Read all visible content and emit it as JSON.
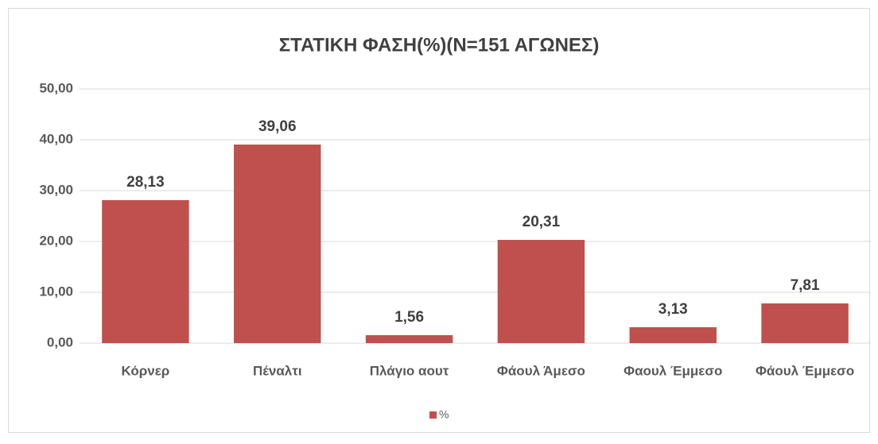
{
  "chart_data": {
    "type": "bar",
    "title": "ΣΤΑΤΙΚΗ ΦΑΣΗ(%)(Ν=151 ΑΓΩΝΕΣ)",
    "categories": [
      "Κόρνερ",
      "Πέναλτι",
      "Πλάγιο αουτ",
      "Φάουλ Άμεσο",
      "Φαουλ Έμμεσο",
      "Φάουλ Έμμεσο"
    ],
    "series": [
      {
        "name": "%",
        "color": "#c0504d",
        "values": [
          28.13,
          39.06,
          1.56,
          20.31,
          3.13,
          7.81
        ],
        "value_labels": [
          "28,13",
          "39,06",
          "1,56",
          "20,31",
          "3,13",
          "7,81"
        ]
      }
    ],
    "ylim": [
      0,
      50
    ],
    "yticks": [
      {
        "value": 0,
        "label": "0,00"
      },
      {
        "value": 10,
        "label": "10,00"
      },
      {
        "value": 20,
        "label": "20,00"
      },
      {
        "value": 30,
        "label": "30,00"
      },
      {
        "value": 40,
        "label": "40,00"
      },
      {
        "value": 50,
        "label": "50,00"
      }
    ],
    "grid": true,
    "legend": "bottom"
  }
}
